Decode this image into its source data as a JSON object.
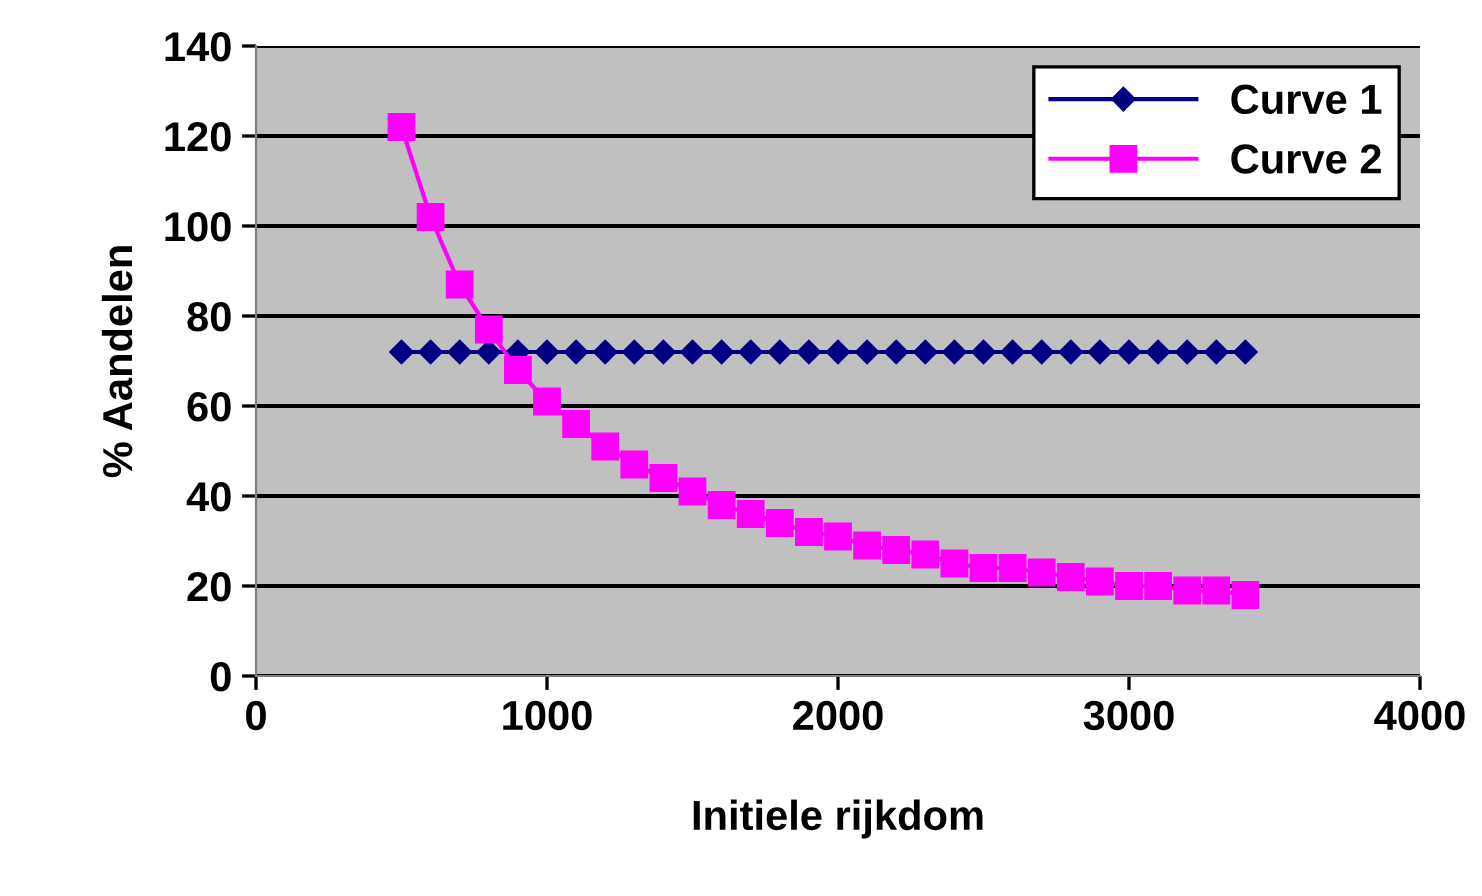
{
  "chart_data": {
    "type": "line",
    "xlabel": "Initiele rijkdom",
    "ylabel": "% Aandelen",
    "x": [
      500,
      600,
      700,
      800,
      900,
      1000,
      1100,
      1200,
      1300,
      1400,
      1500,
      1600,
      1700,
      1800,
      1900,
      2000,
      2100,
      2200,
      2300,
      2400,
      2500,
      2600,
      2700,
      2800,
      2900,
      3000,
      3100,
      3200,
      3300,
      3400
    ],
    "series": [
      {
        "name": "Curve 1",
        "color": "#000080",
        "marker": "diamond",
        "values": [
          72,
          72,
          72,
          72,
          72,
          72,
          72,
          72,
          72,
          72,
          72,
          72,
          72,
          72,
          72,
          72,
          72,
          72,
          72,
          72,
          72,
          72,
          72,
          72,
          72,
          72,
          72,
          72,
          72,
          72
        ]
      },
      {
        "name": "Curve 2",
        "color": "#ff00ff",
        "marker": "square",
        "values": [
          122,
          102,
          87,
          77,
          68,
          61,
          56,
          51,
          47,
          44,
          41,
          38,
          36,
          34,
          32,
          31,
          29,
          28,
          27,
          25,
          24,
          24,
          23,
          22,
          21,
          20,
          20,
          19,
          19,
          18
        ]
      }
    ],
    "xlim": [
      0,
      4000
    ],
    "xticks": [
      0,
      1000,
      2000,
      3000,
      4000
    ],
    "ylim": [
      0,
      140
    ],
    "yticks": [
      0,
      20,
      40,
      60,
      80,
      100,
      120,
      140
    ],
    "grid": "y",
    "legend": "top right",
    "line_style": "solid"
  }
}
